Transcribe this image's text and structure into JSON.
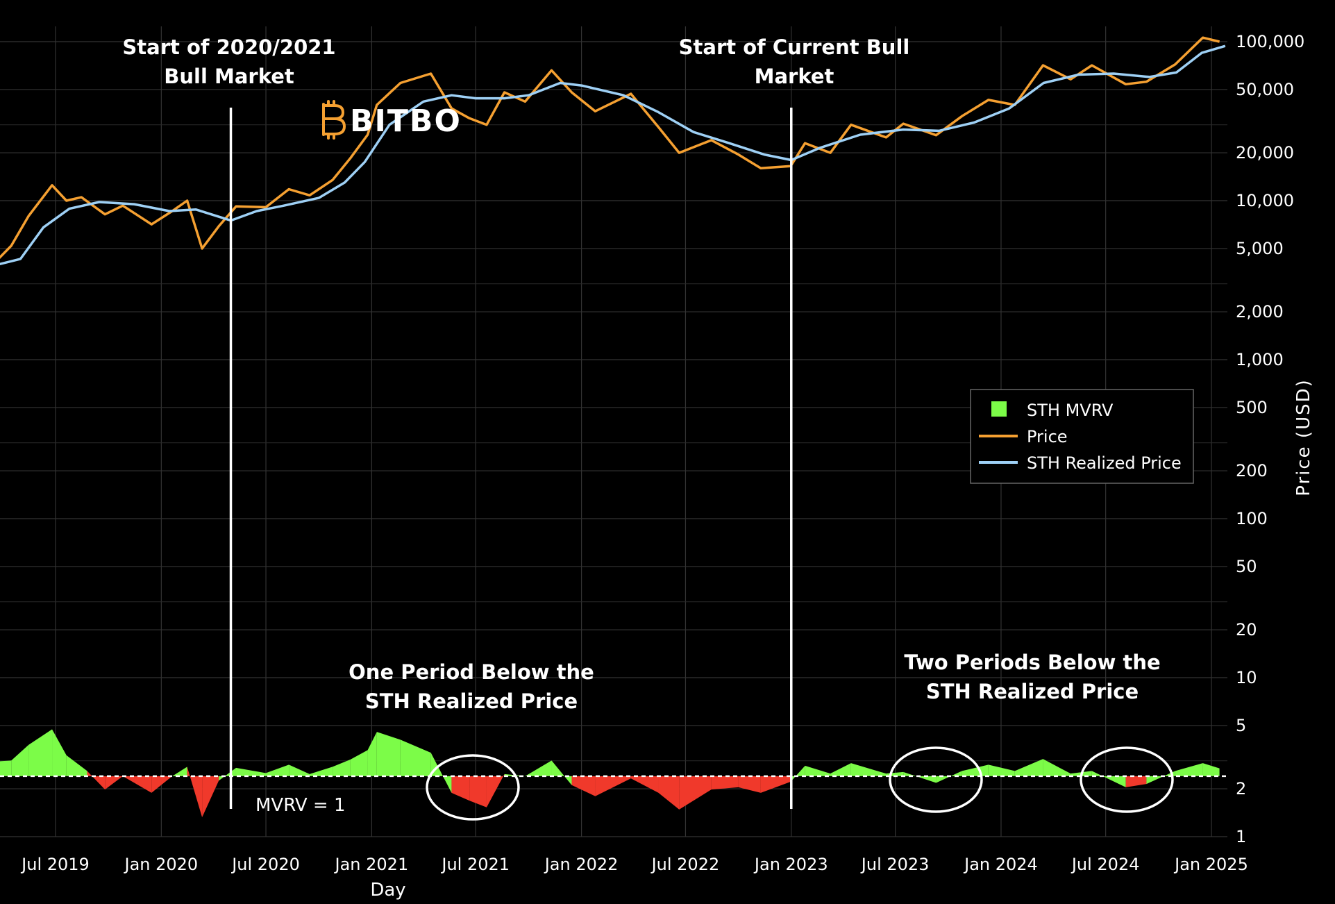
{
  "chart_data": {
    "type": "line",
    "logo": "BITBO",
    "xlabel": "Day",
    "ylabel": "Price (USD)",
    "x_ticks": [
      "Jul 2019",
      "Jan 2020",
      "Jul 2020",
      "Jan 2021",
      "Jul 2021",
      "Jan 2022",
      "Jul 2022",
      "Jan 2023",
      "Jul 2023",
      "Jan 2024",
      "Jul 2024",
      "Jan 2025"
    ],
    "y_ticks": [
      "100,000",
      "50,000",
      "20,000",
      "10,000",
      "5,000",
      "2,000",
      "1,000",
      "500",
      "200",
      "100",
      "50",
      "20",
      "10",
      "5",
      "2",
      "1"
    ],
    "y_scale": "log",
    "grid": true,
    "legend": {
      "position": "right",
      "items": [
        {
          "name": "STH MVRV",
          "color": "#7CFC48",
          "shape": "square"
        },
        {
          "name": "Price",
          "color": "#F5A031",
          "shape": "line"
        },
        {
          "name": "STH Realized Price",
          "color": "#9ED0F5",
          "shape": "line"
        }
      ]
    },
    "annotations": {
      "bull_2020": [
        "Start of 2020/2021",
        "Bull Market"
      ],
      "bull_current": [
        "Start of Current Bull",
        "Market"
      ],
      "one_period": [
        "One Period Below the",
        "STH Realized Price"
      ],
      "two_periods": [
        "Two Periods Below the",
        "STH Realized Price"
      ],
      "mvrv_line": "MVRV = 1"
    },
    "markers": [
      {
        "label": "Start of 2020/2021 Bull Market",
        "date": "2020-05-01"
      },
      {
        "label": "Start of Current Bull Market",
        "date": "2023-01-01"
      }
    ],
    "colors": {
      "price": "#F5A031",
      "sth_realized": "#9ED0F5",
      "mvrv_above": "#7CFC48",
      "mvrv_below": "#F0392B"
    },
    "series": [
      {
        "name": "Price",
        "points": [
          [
            "2019-03-15",
            4000
          ],
          [
            "2019-04-15",
            5200
          ],
          [
            "2019-05-15",
            8000
          ],
          [
            "2019-06-25",
            12500
          ],
          [
            "2019-07-20",
            10000
          ],
          [
            "2019-08-15",
            10500
          ],
          [
            "2019-09-25",
            8200
          ],
          [
            "2019-10-26",
            9300
          ],
          [
            "2019-12-15",
            7100
          ],
          [
            "2020-01-20",
            8600
          ],
          [
            "2020-02-15",
            10000
          ],
          [
            "2020-03-12",
            5000
          ],
          [
            "2020-04-10",
            6900
          ],
          [
            "2020-05-10",
            9200
          ],
          [
            "2020-07-01",
            9100
          ],
          [
            "2020-08-10",
            11800
          ],
          [
            "2020-09-15",
            10800
          ],
          [
            "2020-10-25",
            13500
          ],
          [
            "2020-11-25",
            18500
          ],
          [
            "2020-12-25",
            26000
          ],
          [
            "2021-01-10",
            40000
          ],
          [
            "2021-02-20",
            55000
          ],
          [
            "2021-04-14",
            63000
          ],
          [
            "2021-05-20",
            38000
          ],
          [
            "2021-06-20",
            33000
          ],
          [
            "2021-07-20",
            30000
          ],
          [
            "2021-08-20",
            48000
          ],
          [
            "2021-09-25",
            42000
          ],
          [
            "2021-11-10",
            66000
          ],
          [
            "2021-12-15",
            48000
          ],
          [
            "2022-01-25",
            36500
          ],
          [
            "2022-03-28",
            47000
          ],
          [
            "2022-05-15",
            29000
          ],
          [
            "2022-06-20",
            20000
          ],
          [
            "2022-08-15",
            24000
          ],
          [
            "2022-10-01",
            19500
          ],
          [
            "2022-11-09",
            16000
          ],
          [
            "2022-12-31",
            16500
          ],
          [
            "2023-01-25",
            23000
          ],
          [
            "2023-03-10",
            20000
          ],
          [
            "2023-04-15",
            30000
          ],
          [
            "2023-06-15",
            25000
          ],
          [
            "2023-07-15",
            30500
          ],
          [
            "2023-09-10",
            25800
          ],
          [
            "2023-10-25",
            34000
          ],
          [
            "2023-12-10",
            43000
          ],
          [
            "2024-01-25",
            40000
          ],
          [
            "2024-03-14",
            71000
          ],
          [
            "2024-05-01",
            58000
          ],
          [
            "2024-06-07",
            71000
          ],
          [
            "2024-08-05",
            54000
          ],
          [
            "2024-09-10",
            56000
          ],
          [
            "2024-10-30",
            72000
          ],
          [
            "2024-12-17",
            106000
          ],
          [
            "2025-01-15",
            100000
          ]
        ]
      },
      {
        "name": "STH Realized Price",
        "points": [
          [
            "2019-03-15",
            3900
          ],
          [
            "2019-05-01",
            4300
          ],
          [
            "2019-06-10",
            6800
          ],
          [
            "2019-07-25",
            8900
          ],
          [
            "2019-09-15",
            9800
          ],
          [
            "2019-11-15",
            9500
          ],
          [
            "2020-01-15",
            8600
          ],
          [
            "2020-03-01",
            8800
          ],
          [
            "2020-05-01",
            7500
          ],
          [
            "2020-06-15",
            8600
          ],
          [
            "2020-08-01",
            9300
          ],
          [
            "2020-10-01",
            10400
          ],
          [
            "2020-11-15",
            13000
          ],
          [
            "2020-12-20",
            17500
          ],
          [
            "2021-02-01",
            30000
          ],
          [
            "2021-04-01",
            42000
          ],
          [
            "2021-05-20",
            46000
          ],
          [
            "2021-07-01",
            44000
          ],
          [
            "2021-08-20",
            44000
          ],
          [
            "2021-10-01",
            46000
          ],
          [
            "2021-11-25",
            55000
          ],
          [
            "2022-01-01",
            53000
          ],
          [
            "2022-03-15",
            46000
          ],
          [
            "2022-05-15",
            36000
          ],
          [
            "2022-07-15",
            27000
          ],
          [
            "2022-09-15",
            23000
          ],
          [
            "2022-11-15",
            19500
          ],
          [
            "2023-01-01",
            18000
          ],
          [
            "2023-02-20",
            21500
          ],
          [
            "2023-05-01",
            26000
          ],
          [
            "2023-07-15",
            28000
          ],
          [
            "2023-09-15",
            27500
          ],
          [
            "2023-11-15",
            31000
          ],
          [
            "2024-01-15",
            38000
          ],
          [
            "2024-03-15",
            55000
          ],
          [
            "2024-05-15",
            62000
          ],
          [
            "2024-07-15",
            63000
          ],
          [
            "2024-09-15",
            60000
          ],
          [
            "2024-11-01",
            64000
          ],
          [
            "2024-12-15",
            85000
          ],
          [
            "2025-01-25",
            94000
          ]
        ]
      },
      {
        "name": "STH MVRV",
        "points": [
          [
            "2019-03-15",
            1.28
          ],
          [
            "2019-04-15",
            1.3
          ],
          [
            "2019-05-15",
            1.6
          ],
          [
            "2019-06-25",
            1.9
          ],
          [
            "2019-07-20",
            1.4
          ],
          [
            "2019-08-25",
            1.1
          ],
          [
            "2019-09-25",
            0.88
          ],
          [
            "2019-10-26",
            1.0
          ],
          [
            "2019-12-15",
            0.85
          ],
          [
            "2020-01-20",
            1.0
          ],
          [
            "2020-02-15",
            1.18
          ],
          [
            "2020-03-12",
            0.63
          ],
          [
            "2020-04-10",
            0.96
          ],
          [
            "2020-05-10",
            1.16
          ],
          [
            "2020-07-01",
            1.06
          ],
          [
            "2020-08-10",
            1.22
          ],
          [
            "2020-09-15",
            1.04
          ],
          [
            "2020-10-25",
            1.18
          ],
          [
            "2020-11-25",
            1.32
          ],
          [
            "2020-12-25",
            1.5
          ],
          [
            "2021-01-10",
            1.85
          ],
          [
            "2021-02-20",
            1.7
          ],
          [
            "2021-04-14",
            1.45
          ],
          [
            "2021-05-20",
            0.85
          ],
          [
            "2021-06-20",
            0.78
          ],
          [
            "2021-07-20",
            0.72
          ],
          [
            "2021-08-20",
            1.04
          ],
          [
            "2021-09-25",
            1.0
          ],
          [
            "2021-11-10",
            1.3
          ],
          [
            "2021-12-15",
            0.92
          ],
          [
            "2022-01-25",
            0.82
          ],
          [
            "2022-03-28",
            0.98
          ],
          [
            "2022-05-15",
            0.85
          ],
          [
            "2022-06-20",
            0.7
          ],
          [
            "2022-08-15",
            0.88
          ],
          [
            "2022-10-01",
            0.9
          ],
          [
            "2022-11-09",
            0.85
          ],
          [
            "2022-12-31",
            0.95
          ],
          [
            "2023-01-25",
            1.2
          ],
          [
            "2023-03-10",
            1.05
          ],
          [
            "2023-04-15",
            1.25
          ],
          [
            "2023-06-15",
            1.05
          ],
          [
            "2023-07-15",
            1.08
          ],
          [
            "2023-09-10",
            0.94
          ],
          [
            "2023-10-25",
            1.1
          ],
          [
            "2023-12-10",
            1.22
          ],
          [
            "2024-01-25",
            1.1
          ],
          [
            "2024-03-14",
            1.33
          ],
          [
            "2024-05-01",
            1.05
          ],
          [
            "2024-06-07",
            1.1
          ],
          [
            "2024-08-05",
            0.9
          ],
          [
            "2024-09-10",
            0.93
          ],
          [
            "2024-10-30",
            1.1
          ],
          [
            "2024-12-17",
            1.25
          ],
          [
            "2025-01-15",
            1.15
          ]
        ]
      }
    ]
  }
}
